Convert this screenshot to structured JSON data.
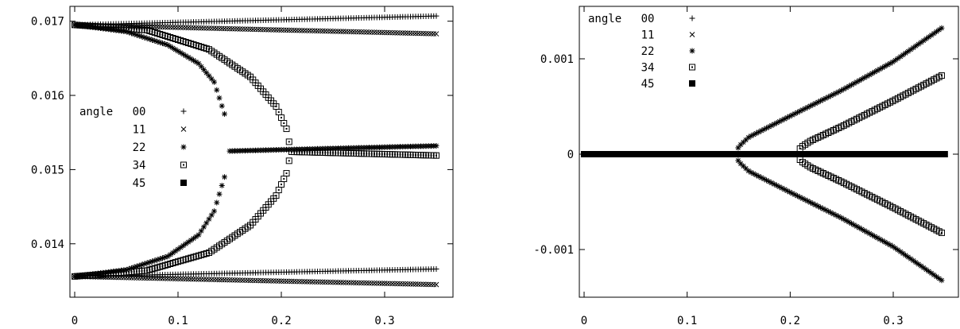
{
  "chart_data": [
    {
      "type": "scatter",
      "title": "",
      "xlabel": "",
      "ylabel": "",
      "xlim": [
        -0.005,
        0.35
      ],
      "ylim": [
        0.01328,
        0.0172
      ],
      "x_ticks": [
        {
          "value": 0,
          "label": "0"
        },
        {
          "value": 0.1,
          "label": "0.1"
        },
        {
          "value": 0.2,
          "label": "0.2"
        },
        {
          "value": 0.3,
          "label": "0.3"
        }
      ],
      "y_ticks": [
        {
          "value": 0.014,
          "label": "0.014"
        },
        {
          "value": 0.015,
          "label": "0.015"
        },
        {
          "value": 0.016,
          "label": "0.016"
        },
        {
          "value": 0.017,
          "label": "0.017"
        }
      ],
      "legend": {
        "placement": "middle-left",
        "title": "angle",
        "entries": [
          {
            "label": "00",
            "marker": "plus"
          },
          {
            "label": "11",
            "marker": "cross"
          },
          {
            "label": "22",
            "marker": "star"
          },
          {
            "label": "34",
            "marker": "box"
          },
          {
            "label": "45",
            "marker": "filled-box"
          }
        ]
      },
      "series": [
        {
          "label": "00",
          "marker": "plus",
          "branches": [
            {
              "x": [
                0,
                0.35
              ],
              "y": [
                0.01695,
                0.01707
              ]
            },
            {
              "x": [
                0,
                0.35
              ],
              "y": [
                0.01356,
                0.01366
              ]
            }
          ]
        },
        {
          "label": "11",
          "marker": "cross",
          "branches": [
            {
              "x": [
                0,
                0.35
              ],
              "y": [
                0.01695,
                0.01683
              ]
            },
            {
              "x": [
                0,
                0.35
              ],
              "y": [
                0.01356,
                0.01345
              ]
            }
          ]
        },
        {
          "label": "22",
          "marker": "star",
          "branches": [
            {
              "x": [
                0,
                0.05,
                0.09,
                0.12,
                0.135,
                0.145,
                0.146
              ],
              "y": [
                0.01695,
                0.01686,
                0.01668,
                0.01643,
                0.01618,
                0.01575,
                0.0156
              ]
            },
            {
              "x": [
                0,
                0.05,
                0.09,
                0.12,
                0.135,
                0.145,
                0.146
              ],
              "y": [
                0.01356,
                0.01365,
                0.01383,
                0.01412,
                0.01444,
                0.0149,
                0.01501
              ]
            },
            {
              "x": [
                0.15,
                0.35
              ],
              "y": [
                0.01525,
                0.01532
              ]
            }
          ]
        },
        {
          "label": "34",
          "marker": "box",
          "branches": [
            {
              "x": [
                0,
                0.07,
                0.13,
                0.17,
                0.195,
                0.205,
                0.209
              ],
              "y": [
                0.01695,
                0.01688,
                0.01662,
                0.01625,
                0.01585,
                0.01555,
                0.01527
              ]
            },
            {
              "x": [
                0,
                0.07,
                0.13,
                0.17,
                0.195,
                0.205,
                0.209
              ],
              "y": [
                0.01356,
                0.01364,
                0.01388,
                0.01425,
                0.01465,
                0.01495,
                0.01522
              ]
            },
            {
              "x": [
                0.21,
                0.35
              ],
              "y": [
                0.01524,
                0.01519
              ]
            }
          ]
        },
        {
          "label": "45",
          "marker": "filled-box",
          "branches": []
        }
      ]
    },
    {
      "type": "scatter",
      "title": "",
      "xlabel": "",
      "ylabel": "",
      "xlim": [
        -0.005,
        0.35
      ],
      "ylim": [
        -0.0015,
        0.00155
      ],
      "x_ticks": [
        {
          "value": 0,
          "label": "0"
        },
        {
          "value": 0.1,
          "label": "0.1"
        },
        {
          "value": 0.2,
          "label": "0.2"
        },
        {
          "value": 0.3,
          "label": "0.3"
        }
      ],
      "y_ticks": [
        {
          "value": -0.001,
          "label": "-0.001"
        },
        {
          "value": 0,
          "label": "0"
        },
        {
          "value": 0.001,
          "label": "0.001"
        }
      ],
      "legend": {
        "placement": "top-left",
        "title": "angle",
        "entries": [
          {
            "label": "00",
            "marker": "plus"
          },
          {
            "label": "11",
            "marker": "cross"
          },
          {
            "label": "22",
            "marker": "star"
          },
          {
            "label": "34",
            "marker": "box"
          },
          {
            "label": "45",
            "marker": "filled-box"
          }
        ]
      },
      "series": [
        {
          "label": "00",
          "marker": "plus",
          "branches": [
            {
              "x": [
                0,
                0.35
              ],
              "y": [
                0,
                0
              ]
            }
          ]
        },
        {
          "label": "11",
          "marker": "cross",
          "branches": [
            {
              "x": [
                0,
                0.35
              ],
              "y": [
                0,
                0
              ]
            }
          ]
        },
        {
          "label": "22",
          "marker": "star",
          "branches": [
            {
              "x": [
                0,
                0.147
              ],
              "y": [
                0,
                0
              ]
            },
            {
              "x": [
                0.147,
                0.15,
                0.16,
                0.2,
                0.25,
                0.3,
                0.348
              ],
              "y": [
                0,
                8e-05,
                0.00018,
                0.0004,
                0.00067,
                0.00097,
                0.00133
              ]
            },
            {
              "x": [
                0.147,
                0.15,
                0.16,
                0.2,
                0.25,
                0.3,
                0.348
              ],
              "y": [
                0,
                -8e-05,
                -0.00018,
                -0.0004,
                -0.00067,
                -0.00097,
                -0.00133
              ]
            }
          ]
        },
        {
          "label": "34",
          "marker": "box",
          "branches": [
            {
              "x": [
                0,
                0.207
              ],
              "y": [
                0,
                0
              ]
            },
            {
              "x": [
                0.207,
                0.21,
                0.22,
                0.25,
                0.3,
                0.348
              ],
              "y": [
                0,
                7e-05,
                0.00014,
                0.00029,
                0.00056,
                0.00083
              ]
            },
            {
              "x": [
                0.207,
                0.21,
                0.22,
                0.25,
                0.3,
                0.348
              ],
              "y": [
                0,
                -7e-05,
                -0.00014,
                -0.00029,
                -0.00056,
                -0.00083
              ]
            }
          ]
        },
        {
          "label": "45",
          "marker": "filled-box",
          "branches": [
            {
              "x": [
                0,
                0.35
              ],
              "y": [
                0,
                0
              ]
            }
          ]
        }
      ]
    }
  ]
}
